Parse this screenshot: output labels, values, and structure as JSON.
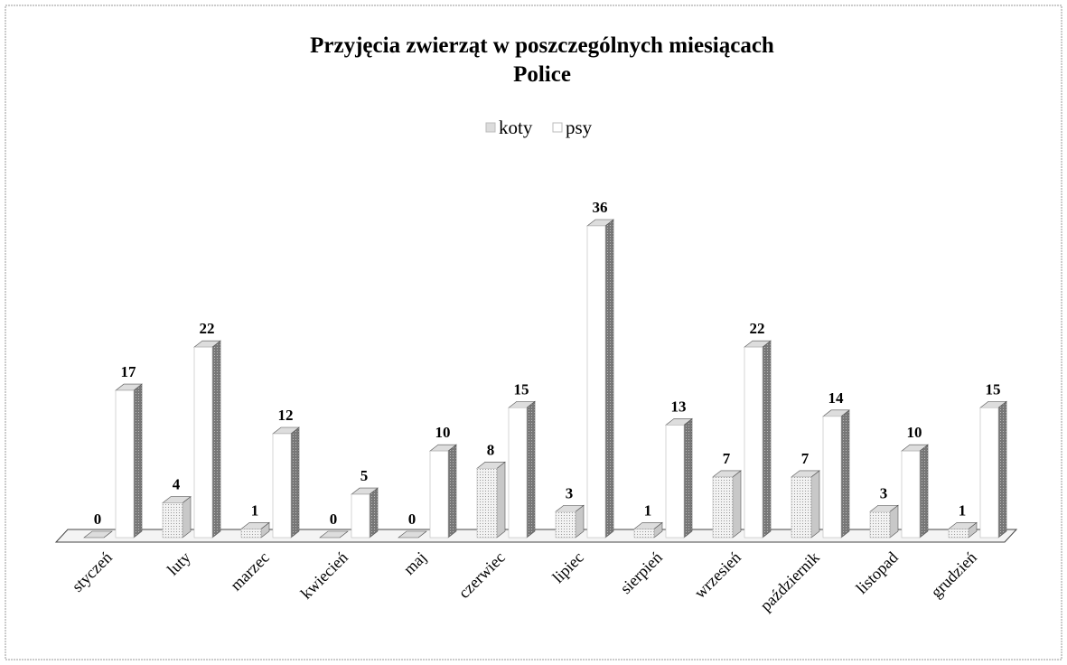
{
  "chart_data": {
    "type": "bar3d",
    "title": "Przyjęcia zwierząt w poszczególnych miesiącach",
    "subtitle": "Police",
    "categories": [
      "styczeń",
      "luty",
      "marzec",
      "kwiecień",
      "maj",
      "czerwiec",
      "lipiec",
      "sierpień",
      "wrzesień",
      "październik",
      "listopad",
      "grudzień"
    ],
    "series": [
      {
        "name": "koty",
        "color": "#dcdcdc",
        "values": [
          0,
          4,
          1,
          0,
          0,
          8,
          3,
          1,
          7,
          7,
          3,
          1
        ]
      },
      {
        "name": "psy",
        "color": "#ffffff",
        "values": [
          17,
          22,
          12,
          5,
          10,
          15,
          36,
          13,
          22,
          14,
          10,
          15
        ]
      }
    ],
    "legend": "top"
  }
}
